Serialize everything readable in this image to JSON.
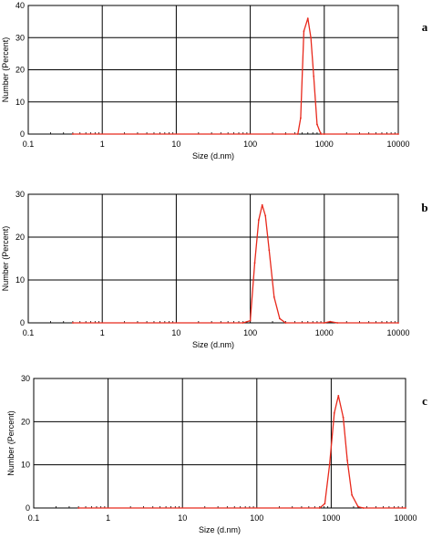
{
  "chart_data": [
    {
      "type": "line",
      "panel_label": "a",
      "xlabel": "Size (d.nm)",
      "ylabel": "Number (Percent)",
      "xscale": "log",
      "xlim": [
        0.1,
        10000
      ],
      "ylim": [
        0,
        40
      ],
      "xticks": [
        "0.1",
        "1",
        "10",
        "100",
        "1000",
        "10000"
      ],
      "yticks": [
        "0",
        "10",
        "20",
        "30",
        "40"
      ],
      "grid": true,
      "line_color": "#e8291c",
      "series": [
        {
          "x": [
            0.4,
            300,
            440,
            480,
            530,
            600,
            660,
            720,
            800,
            900,
            1000,
            10000
          ],
          "y": [
            0,
            0,
            0,
            5,
            32,
            36,
            30,
            18,
            3,
            0,
            0,
            0
          ]
        }
      ]
    },
    {
      "type": "line",
      "panel_label": "b",
      "xlabel": "Size (d.nm)",
      "ylabel": "Number (Percent)",
      "xscale": "log",
      "xlim": [
        0.1,
        10000
      ],
      "ylim": [
        0,
        30
      ],
      "xticks": [
        "0.1",
        "1",
        "10",
        "100",
        "1000",
        "10000"
      ],
      "yticks": [
        "0",
        "10",
        "20",
        "30"
      ],
      "grid": true,
      "line_color": "#e8291c",
      "series": [
        {
          "x": [
            0.4,
            80,
            100,
            115,
            130,
            145,
            160,
            180,
            210,
            250,
            300,
            1000,
            1200,
            1500,
            10000
          ],
          "y": [
            0,
            0,
            0.5,
            14,
            24,
            27.5,
            25,
            17,
            6,
            1,
            0,
            0,
            0.3,
            0,
            0
          ]
        }
      ]
    },
    {
      "type": "line",
      "panel_label": "c",
      "xlabel": "Size (d.nm)",
      "ylabel": "Number (Percent)",
      "xscale": "log",
      "xlim": [
        0.1,
        10000
      ],
      "ylim": [
        0,
        30
      ],
      "xticks": [
        "0.1",
        "1",
        "10",
        "100",
        "1000",
        "10000"
      ],
      "yticks": [
        "0",
        "10",
        "20",
        "30"
      ],
      "grid": true,
      "line_color": "#e8291c",
      "series": [
        {
          "x": [
            0.4,
            700,
            820,
            950,
            1100,
            1250,
            1450,
            1650,
            1900,
            2300,
            2700,
            10000
          ],
          "y": [
            0,
            0,
            1,
            10,
            22,
            26,
            21,
            11,
            3,
            0.3,
            0,
            0
          ]
        }
      ]
    }
  ]
}
